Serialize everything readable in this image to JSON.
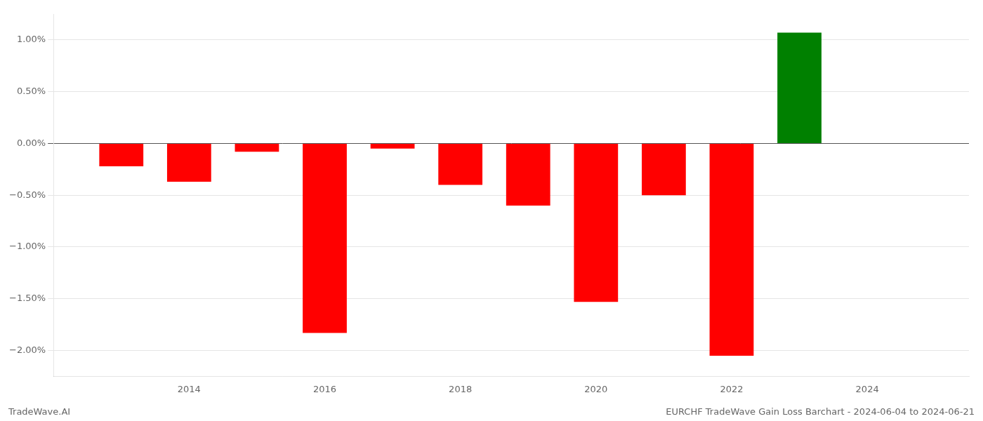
{
  "chart_data": {
    "type": "bar",
    "x": [
      2013,
      2014,
      2015,
      2016,
      2017,
      2018,
      2019,
      2020,
      2021,
      2022,
      2023
    ],
    "values": [
      -0.22,
      -0.37,
      -0.08,
      -1.83,
      -0.05,
      -0.4,
      -0.6,
      -1.53,
      -0.5,
      -2.05,
      1.07
    ],
    "colors": [
      "#ff0000",
      "#ff0000",
      "#ff0000",
      "#ff0000",
      "#ff0000",
      "#ff0000",
      "#ff0000",
      "#ff0000",
      "#ff0000",
      "#ff0000",
      "#008000"
    ],
    "xlim": [
      2012.0,
      2025.5
    ],
    "xticks": [
      2014,
      2016,
      2018,
      2020,
      2022,
      2024
    ],
    "ylim": [
      -2.25,
      1.25
    ],
    "yticks": [
      {
        "value": -2.0,
        "label": "−2.00%"
      },
      {
        "value": -1.5,
        "label": "−1.50%"
      },
      {
        "value": -1.0,
        "label": "−1.00%"
      },
      {
        "value": -0.5,
        "label": "−0.50%"
      },
      {
        "value": 0.0,
        "label": "0.00%"
      },
      {
        "value": 0.5,
        "label": "0.50%"
      },
      {
        "value": 1.0,
        "label": "1.00%"
      }
    ],
    "grid": "y",
    "annotations": [
      "TradeWave.AI",
      "EURCHF TradeWave Gain Loss Barchart - 2024-06-04 to 2024-06-21"
    ]
  }
}
